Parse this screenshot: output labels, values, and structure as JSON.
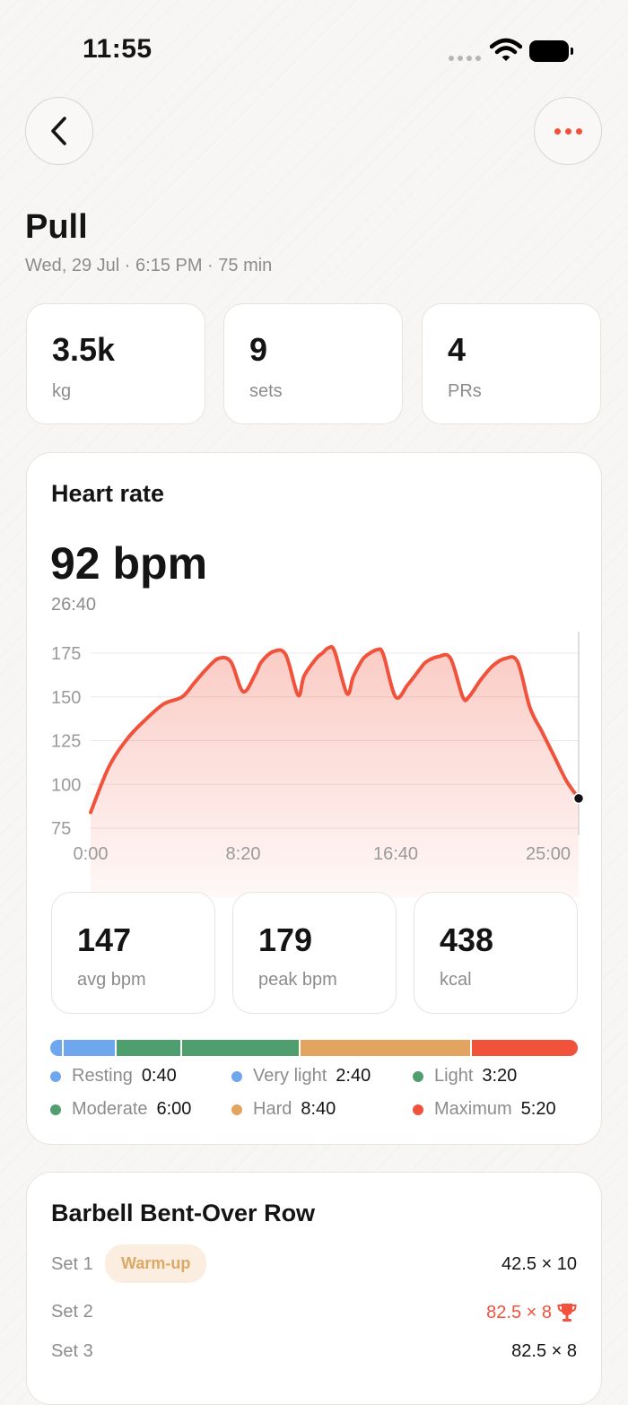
{
  "status_bar": {
    "time": "11:55"
  },
  "header": {
    "title": "Pull",
    "subtitle": "Wed, 29 Jul · 6:15 PM · 75 min"
  },
  "summary_stats": [
    {
      "value": "3.5k",
      "label": "kg"
    },
    {
      "value": "9",
      "label": "sets"
    },
    {
      "value": "4",
      "label": "PRs"
    }
  ],
  "heart_rate": {
    "title": "Heart rate",
    "current_value": "92 bpm",
    "current_time": "26:40",
    "stats": [
      {
        "value": "147",
        "label": "avg bpm"
      },
      {
        "value": "179",
        "label": "peak bpm"
      },
      {
        "value": "438",
        "label": "kcal"
      }
    ],
    "zones": [
      {
        "name": "Resting",
        "duration": "0:40",
        "minutes": 0.67,
        "color": "#6ea7ee"
      },
      {
        "name": "Very light",
        "duration": "2:40",
        "minutes": 2.67,
        "color": "#6ea7ee"
      },
      {
        "name": "Light",
        "duration": "3:20",
        "minutes": 3.33,
        "color": "#4f9e6e"
      },
      {
        "name": "Moderate",
        "duration": "6:00",
        "minutes": 6.0,
        "color": "#4f9e6e"
      },
      {
        "name": "Hard",
        "duration": "8:40",
        "minutes": 8.67,
        "color": "#e2a45e"
      },
      {
        "name": "Maximum",
        "duration": "5:20",
        "minutes": 5.33,
        "color": "#f0523c"
      }
    ]
  },
  "chart_data": {
    "type": "area",
    "title": "",
    "xlabel": "",
    "ylabel": "",
    "x_tick_labels": [
      "0:00",
      "8:20",
      "16:40",
      "25:00"
    ],
    "x_ticks": [
      0,
      500,
      1000,
      1500
    ],
    "y_ticks": [
      75,
      100,
      125,
      150,
      175
    ],
    "xlim": [
      0,
      1600
    ],
    "ylim": [
      75,
      175
    ],
    "grid": true,
    "color": "#f0523c",
    "cursor": {
      "x": 1600,
      "y": 92
    },
    "series": [
      {
        "x": [
          0,
          60,
          120,
          180,
          240,
          300,
          340,
          380,
          420,
          460,
          500,
          540,
          560,
          600,
          640,
          680,
          700,
          740,
          760,
          780,
          800,
          840,
          860,
          880,
          900,
          940,
          960,
          1000,
          1040,
          1080,
          1100,
          1140,
          1180,
          1220,
          1240,
          1280,
          1320,
          1360,
          1400,
          1440,
          1480,
          1520,
          1560,
          1600
        ],
        "y": [
          84,
          110,
          126,
          137,
          146,
          150,
          158,
          166,
          172,
          170,
          153,
          163,
          170,
          176,
          174,
          151,
          162,
          172,
          175,
          178,
          176,
          152,
          161,
          168,
          173,
          177,
          174,
          150,
          157,
          166,
          170,
          173,
          172,
          150,
          150,
          160,
          168,
          172,
          170,
          144,
          130,
          116,
          102,
          92
        ]
      }
    ]
  },
  "exercise": {
    "title": "Barbell Bent-Over Row",
    "warmup_label": "Warm-up",
    "sets": [
      {
        "label": "Set 1",
        "value": "42.5 × 10",
        "pr": false
      },
      {
        "label": "Set 2",
        "value": "82.5 × 8",
        "pr": true
      },
      {
        "label": "Set 3",
        "value": "82.5 × 8",
        "pr": false
      }
    ]
  }
}
